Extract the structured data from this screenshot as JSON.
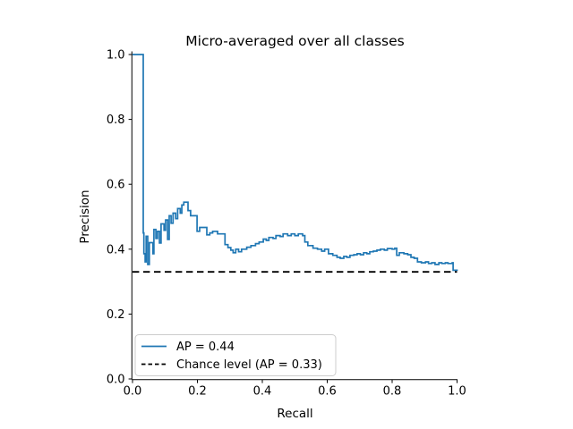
{
  "figure": {
    "title": "Micro-averaged over all classes",
    "xlabel": "Recall",
    "ylabel": "Precision"
  },
  "colors": {
    "curve": "#1f77b4",
    "chance": "#000000",
    "spine": "#000000",
    "legend_border": "#cccccc",
    "background": "#ffffff"
  },
  "legend": {
    "entries": [
      {
        "label": "AP = 0.44",
        "style": "solid"
      },
      {
        "label": "Chance level (AP = 0.33)",
        "style": "dashed"
      }
    ],
    "position": "lower left"
  },
  "chart_data": {
    "type": "line",
    "title": "Micro-averaged over all classes",
    "xlabel": "Recall",
    "ylabel": "Precision",
    "xlim": [
      0.0,
      1.0
    ],
    "ylim": [
      0.0,
      1.0
    ],
    "x_ticks": [
      0.0,
      0.2,
      0.4,
      0.6,
      0.8,
      1.0
    ],
    "y_ticks": [
      0.0,
      0.2,
      0.4,
      0.6,
      0.8,
      1.0
    ],
    "grid": false,
    "legend_position": "lower left",
    "series": [
      {
        "name": "AP = 0.44",
        "type": "step",
        "line_style": "solid",
        "color": "#1f77b4",
        "points": [
          [
            0.0,
            1.0
          ],
          [
            0.033,
            0.45
          ],
          [
            0.035,
            0.386
          ],
          [
            0.039,
            0.361
          ],
          [
            0.042,
            0.44
          ],
          [
            0.047,
            0.353
          ],
          [
            0.052,
            0.42
          ],
          [
            0.063,
            0.386
          ],
          [
            0.066,
            0.461
          ],
          [
            0.072,
            0.433
          ],
          [
            0.077,
            0.455
          ],
          [
            0.083,
            0.419
          ],
          [
            0.088,
            0.478
          ],
          [
            0.097,
            0.458
          ],
          [
            0.102,
            0.49
          ],
          [
            0.108,
            0.43
          ],
          [
            0.113,
            0.503
          ],
          [
            0.119,
            0.48
          ],
          [
            0.125,
            0.511
          ],
          [
            0.133,
            0.494
          ],
          [
            0.139,
            0.525
          ],
          [
            0.147,
            0.511
          ],
          [
            0.152,
            0.536
          ],
          [
            0.158,
            0.545
          ],
          [
            0.171,
            0.519
          ],
          [
            0.179,
            0.503
          ],
          [
            0.199,
            0.455
          ],
          [
            0.207,
            0.467
          ],
          [
            0.229,
            0.444
          ],
          [
            0.238,
            0.45
          ],
          [
            0.247,
            0.455
          ],
          [
            0.262,
            0.447
          ],
          [
            0.285,
            0.414
          ],
          [
            0.294,
            0.405
          ],
          [
            0.303,
            0.397
          ],
          [
            0.31,
            0.389
          ],
          [
            0.318,
            0.4
          ],
          [
            0.327,
            0.392
          ],
          [
            0.336,
            0.4
          ],
          [
            0.352,
            0.406
          ],
          [
            0.365,
            0.411
          ],
          [
            0.379,
            0.417
          ],
          [
            0.39,
            0.422
          ],
          [
            0.403,
            0.431
          ],
          [
            0.412,
            0.427
          ],
          [
            0.42,
            0.436
          ],
          [
            0.433,
            0.433
          ],
          [
            0.442,
            0.442
          ],
          [
            0.455,
            0.439
          ],
          [
            0.464,
            0.447
          ],
          [
            0.478,
            0.442
          ],
          [
            0.489,
            0.447
          ],
          [
            0.5,
            0.442
          ],
          [
            0.511,
            0.447
          ],
          [
            0.524,
            0.442
          ],
          [
            0.531,
            0.422
          ],
          [
            0.54,
            0.411
          ],
          [
            0.556,
            0.403
          ],
          [
            0.57,
            0.4
          ],
          [
            0.583,
            0.394
          ],
          [
            0.592,
            0.4
          ],
          [
            0.604,
            0.386
          ],
          [
            0.617,
            0.381
          ],
          [
            0.63,
            0.375
          ],
          [
            0.64,
            0.372
          ],
          [
            0.651,
            0.378
          ],
          [
            0.66,
            0.375
          ],
          [
            0.67,
            0.381
          ],
          [
            0.682,
            0.383
          ],
          [
            0.692,
            0.386
          ],
          [
            0.702,
            0.383
          ],
          [
            0.712,
            0.389
          ],
          [
            0.722,
            0.386
          ],
          [
            0.731,
            0.392
          ],
          [
            0.742,
            0.394
          ],
          [
            0.753,
            0.397
          ],
          [
            0.764,
            0.4
          ],
          [
            0.776,
            0.397
          ],
          [
            0.785,
            0.402
          ],
          [
            0.8,
            0.4
          ],
          [
            0.808,
            0.403
          ],
          [
            0.814,
            0.381
          ],
          [
            0.822,
            0.389
          ],
          [
            0.836,
            0.386
          ],
          [
            0.848,
            0.383
          ],
          [
            0.858,
            0.375
          ],
          [
            0.868,
            0.372
          ],
          [
            0.878,
            0.361
          ],
          [
            0.89,
            0.358
          ],
          [
            0.903,
            0.361
          ],
          [
            0.912,
            0.356
          ],
          [
            0.922,
            0.358
          ],
          [
            0.932,
            0.353
          ],
          [
            0.944,
            0.358
          ],
          [
            0.953,
            0.356
          ],
          [
            0.964,
            0.358
          ],
          [
            0.972,
            0.356
          ],
          [
            0.985,
            0.358
          ],
          [
            0.988,
            0.335
          ],
          [
            1.0,
            0.333
          ]
        ]
      },
      {
        "name": "Chance level (AP = 0.33)",
        "type": "hline",
        "line_style": "dashed",
        "color": "#000000",
        "y": 0.33,
        "x_range": [
          0.0,
          1.0
        ]
      }
    ]
  }
}
